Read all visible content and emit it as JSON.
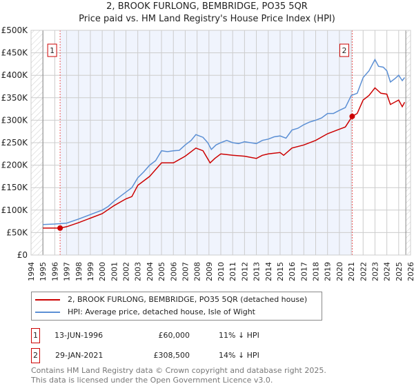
{
  "chart_data": {
    "type": "line",
    "title": "2, BROOK FURLONG, BEMBRIDGE, PO35 5QR",
    "subtitle": "Price paid vs. HM Land Registry's House Price Index (HPI)",
    "xlim": [
      1994,
      2026
    ],
    "ylim": [
      0,
      500000
    ],
    "yticks": [
      {
        "v": 0,
        "label": "£0"
      },
      {
        "v": 50000,
        "label": "£50K"
      },
      {
        "v": 100000,
        "label": "£100K"
      },
      {
        "v": 150000,
        "label": "£150K"
      },
      {
        "v": 200000,
        "label": "£200K"
      },
      {
        "v": 250000,
        "label": "£250K"
      },
      {
        "v": 300000,
        "label": "£300K"
      },
      {
        "v": 350000,
        "label": "£350K"
      },
      {
        "v": 400000,
        "label": "£400K"
      },
      {
        "v": 450000,
        "label": "£450K"
      },
      {
        "v": 500000,
        "label": "£500K"
      }
    ],
    "xticks": [
      "1994",
      "1995",
      "1996",
      "1997",
      "1998",
      "1999",
      "2000",
      "2001",
      "2002",
      "2003",
      "2004",
      "2005",
      "2006",
      "2007",
      "2008",
      "2009",
      "2010",
      "2011",
      "2012",
      "2013",
      "2014",
      "2015",
      "2016",
      "2017",
      "2018",
      "2019",
      "2020",
      "2021",
      "2022",
      "2023",
      "2024",
      "2025",
      "2026"
    ],
    "grid": true,
    "series": [
      {
        "name": "2, BROOK FURLONG, BEMBRIDGE, PO35 5QR (detached house)",
        "color": "#cc0000",
        "x": [
          1995,
          1996.45,
          1997,
          1998,
          1999,
          2000,
          2001,
          2002,
          2002.5,
          2003,
          2004,
          2005,
          2006,
          2007,
          2007.9,
          2008.5,
          2009.1,
          2009.5,
          2010,
          2011,
          2012,
          2013,
          2013.5,
          2014,
          2015,
          2015.3,
          2016,
          2017,
          2018,
          2019,
          2020,
          2020.5,
          2021.08,
          2021.5,
          2022,
          2022.5,
          2023,
          2023.5,
          2024,
          2024.3,
          2025,
          2025.3,
          2025.5
        ],
        "y": [
          60,
          60,
          63,
          72,
          82,
          92,
          110,
          125,
          130,
          155,
          175,
          205,
          205,
          220,
          238,
          232,
          205,
          215,
          225,
          222,
          220,
          215,
          222,
          225,
          228,
          222,
          238,
          245,
          255,
          270,
          280,
          285,
          308.5,
          315,
          345,
          355,
          372,
          360,
          358,
          335,
          345,
          330,
          340
        ]
      },
      {
        "name": "HPI: Average price, detached house, Isle of Wight",
        "color": "#5b8fd4",
        "x": [
          1995,
          1996,
          1997,
          1998,
          1999,
          2000,
          2000.5,
          2001,
          2001.5,
          2002,
          2002.5,
          2003,
          2003.5,
          2004,
          2004.5,
          2005,
          2005.5,
          2006,
          2006.5,
          2007,
          2007.5,
          2007.9,
          2008.5,
          2008.9,
          2009.2,
          2009.6,
          2010,
          2010.5,
          2011,
          2011.5,
          2012,
          2012.5,
          2013,
          2013.5,
          2014,
          2014.5,
          2015,
          2015.5,
          2016,
          2016.5,
          2017,
          2017.5,
          2018,
          2018.5,
          2019,
          2019.5,
          2020,
          2020.5,
          2021,
          2021.5,
          2022,
          2022.5,
          2023,
          2023.3,
          2023.7,
          2024,
          2024.3,
          2024.7,
          2025,
          2025.3,
          2025.5
        ],
        "y": [
          68,
          69,
          71,
          80,
          90,
          100,
          108,
          120,
          130,
          140,
          150,
          172,
          185,
          200,
          210,
          232,
          230,
          232,
          233,
          245,
          255,
          268,
          262,
          250,
          235,
          245,
          250,
          255,
          250,
          248,
          252,
          250,
          248,
          255,
          258,
          263,
          265,
          260,
          278,
          282,
          290,
          296,
          300,
          305,
          315,
          315,
          322,
          328,
          355,
          360,
          395,
          410,
          435,
          420,
          418,
          410,
          385,
          393,
          400,
          388,
          395
        ]
      }
    ],
    "sales": [
      {
        "id": "1",
        "date": "13-JUN-1996",
        "price": "£60,000",
        "hpi": "11% ↓ HPI",
        "x": 1996.45,
        "y": 60
      },
      {
        "id": "2",
        "date": "29-JAN-2021",
        "price": "£308,500",
        "hpi": "14% ↓ HPI",
        "x": 2021.08,
        "y": 308.5
      }
    ]
  },
  "legend": {
    "red": "2, BROOK FURLONG, BEMBRIDGE, PO35 5QR (detached house)",
    "blue": "HPI: Average price, detached house, Isle of Wight"
  },
  "footer": {
    "line1": "Contains HM Land Registry data © Crown copyright and database right 2025.",
    "line2": "This data is licensed under the Open Government Licence v3.0."
  }
}
